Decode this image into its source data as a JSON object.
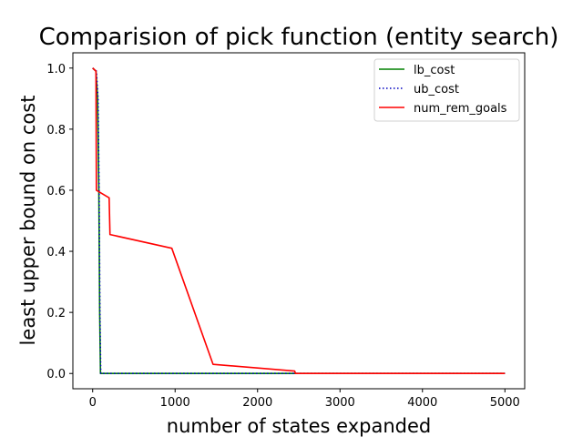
{
  "chart_data": {
    "type": "line",
    "title": "Comparision of pick function (entity search)",
    "xlabel": "number of states expanded",
    "ylabel": "least upper bound on cost",
    "xlim": [
      -240,
      5240
    ],
    "ylim": [
      -0.05,
      1.05
    ],
    "xticks": [
      0,
      1000,
      2000,
      3000,
      4000,
      5000
    ],
    "yticks": [
      0.0,
      0.2,
      0.4,
      0.6,
      0.8,
      1.0
    ],
    "xtick_labels": [
      "0",
      "1000",
      "2000",
      "3000",
      "4000",
      "5000"
    ],
    "ytick_labels": [
      "0.0",
      "0.2",
      "0.4",
      "0.6",
      "0.8",
      "1.0"
    ],
    "grid": false,
    "legend_position": "upper right",
    "series": [
      {
        "name": "lb_cost",
        "color": "#008000",
        "style": "solid",
        "points": [
          [
            0,
            1.0
          ],
          [
            40,
            0.99
          ],
          [
            60,
            0.9
          ],
          [
            75,
            0.6
          ],
          [
            85,
            0.2
          ],
          [
            95,
            0.0
          ],
          [
            5000,
            0.0
          ]
        ]
      },
      {
        "name": "ub_cost",
        "color": "#0000bf",
        "style": "dotted",
        "points": [
          [
            0,
            1.0
          ],
          [
            45,
            0.99
          ],
          [
            65,
            0.9
          ],
          [
            78,
            0.6
          ],
          [
            88,
            0.2
          ],
          [
            98,
            0.0
          ],
          [
            5000,
            0.0
          ]
        ]
      },
      {
        "name": "num_rem_goals",
        "color": "#ff0000",
        "style": "solid",
        "points": [
          [
            0,
            1.0
          ],
          [
            40,
            0.99
          ],
          [
            45,
            0.6
          ],
          [
            200,
            0.575
          ],
          [
            210,
            0.455
          ],
          [
            960,
            0.41
          ],
          [
            1460,
            0.03
          ],
          [
            2450,
            0.008
          ],
          [
            2460,
            0.0
          ],
          [
            5000,
            0.0
          ]
        ]
      }
    ]
  }
}
